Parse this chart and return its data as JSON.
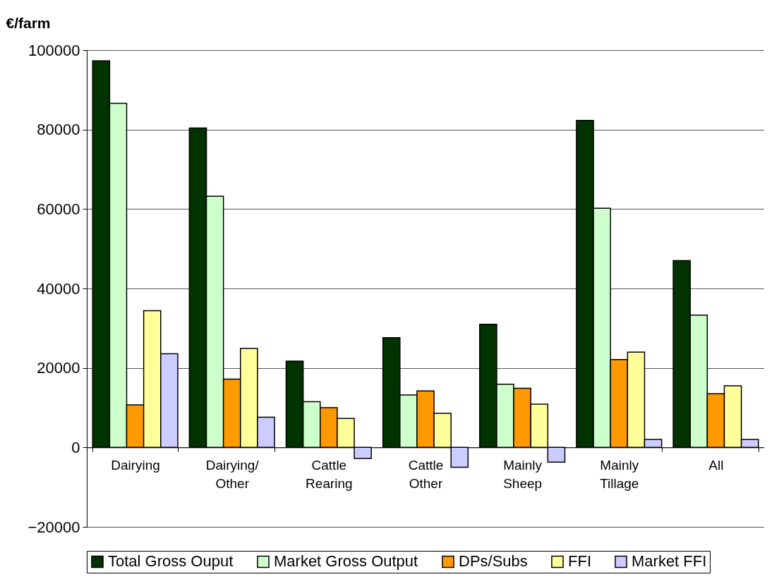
{
  "chart_data": {
    "type": "bar",
    "ylabel": "€/farm",
    "categories": [
      "Dairying",
      "Dairying/ Other",
      "Cattle Rearing",
      "Cattle Other",
      "Mainly Sheep",
      "Mainly Tillage",
      "All"
    ],
    "series": [
      {
        "name": "Total Gross Ouput",
        "color": "#003300",
        "values": [
          97300,
          80400,
          21700,
          27600,
          31000,
          82300,
          47000
        ]
      },
      {
        "name": "Market Gross Output",
        "color": "#ccffcc",
        "values": [
          86600,
          63200,
          11500,
          13200,
          15900,
          60200,
          33300
        ]
      },
      {
        "name": "DPs/Subs",
        "color": "#ff9900",
        "values": [
          10700,
          17200,
          10000,
          14200,
          14900,
          22100,
          13500
        ]
      },
      {
        "name": "FFI",
        "color": "#ffff99",
        "values": [
          34400,
          24900,
          7300,
          8600,
          10900,
          24000,
          15500
        ]
      },
      {
        "name": "Market FFI",
        "color": "#ccccff",
        "values": [
          23600,
          7600,
          -2800,
          -5000,
          -3700,
          2000,
          2000
        ]
      }
    ],
    "ylim": [
      -20000,
      100000
    ],
    "yticks": [
      -20000,
      0,
      20000,
      40000,
      60000,
      80000,
      100000
    ],
    "grid": "y",
    "legend": "bottom"
  }
}
